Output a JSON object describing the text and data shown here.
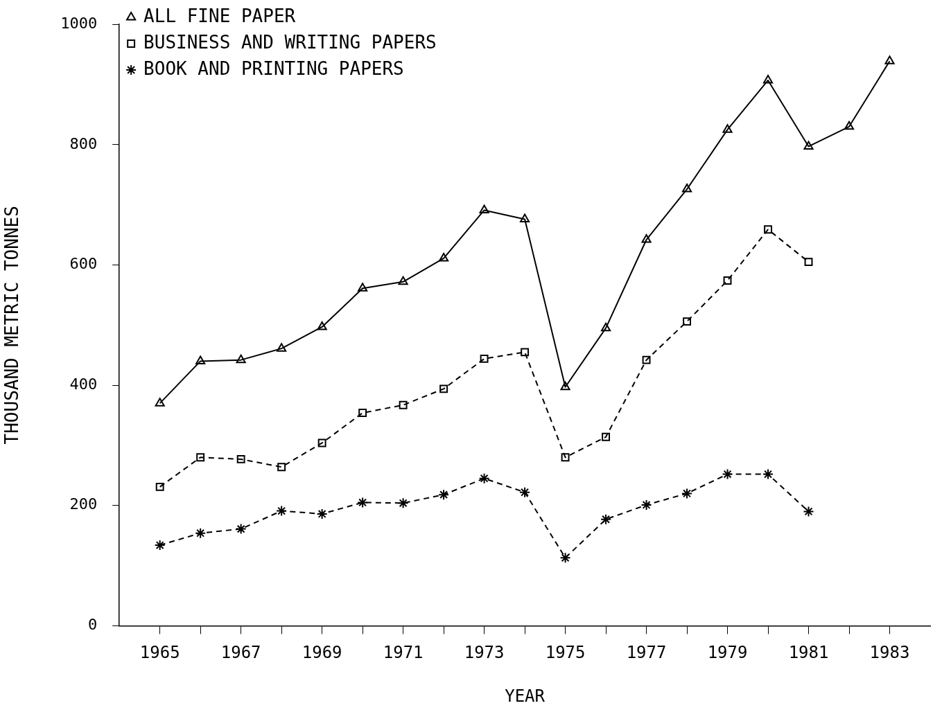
{
  "chart_data": {
    "type": "line",
    "xlabel": "YEAR",
    "ylabel": "THOUSAND METRIC TONNES",
    "x": [
      1965,
      1966,
      1967,
      1968,
      1969,
      1970,
      1971,
      1972,
      1973,
      1974,
      1975,
      1976,
      1977,
      1978,
      1979,
      1980,
      1981,
      1982,
      1983
    ],
    "xlim": [
      1964,
      1984
    ],
    "xticks": [
      1965,
      {
        "value": 1966,
        "label": null
      },
      1967,
      {
        "value": 1968,
        "label": null
      },
      1969,
      {
        "value": 1970,
        "label": null
      },
      1971,
      {
        "value": 1972,
        "label": null
      },
      1973,
      {
        "value": 1974,
        "label": null
      },
      1975,
      {
        "value": 1976,
        "label": null
      },
      1977,
      {
        "value": 1978,
        "label": null
      },
      1979,
      {
        "value": 1980,
        "label": null
      },
      1981,
      {
        "value": 1982,
        "label": null
      },
      1983
    ],
    "ylim": [
      0,
      1000
    ],
    "yticks": [
      0,
      200,
      400,
      600,
      800,
      1000
    ],
    "legend": "top left",
    "series": [
      {
        "name": "ALL FINE PAPER",
        "color": "#000000",
        "marker": "triangle",
        "line_style": "solid",
        "values": [
          370,
          440,
          442,
          461,
          497,
          561,
          572,
          611,
          691,
          676,
          397,
          495,
          642,
          726,
          825,
          907,
          797,
          830,
          939
        ]
      },
      {
        "name": "BUSINESS AND WRITING PAPERS",
        "color": "#000000",
        "marker": "square",
        "line_style": "dashed",
        "values": [
          231,
          280,
          277,
          264,
          304,
          354,
          367,
          394,
          444,
          455,
          280,
          314,
          442,
          506,
          574,
          659,
          605,
          null,
          null
        ]
      },
      {
        "name": "BOOK AND PRINTING PAPERS",
        "color": "#000000",
        "marker": "cross",
        "line_style": "dashed",
        "values": [
          134,
          154,
          161,
          191,
          186,
          205,
          204,
          218,
          245,
          222,
          113,
          177,
          201,
          220,
          252,
          252,
          190,
          null,
          null
        ]
      }
    ]
  }
}
